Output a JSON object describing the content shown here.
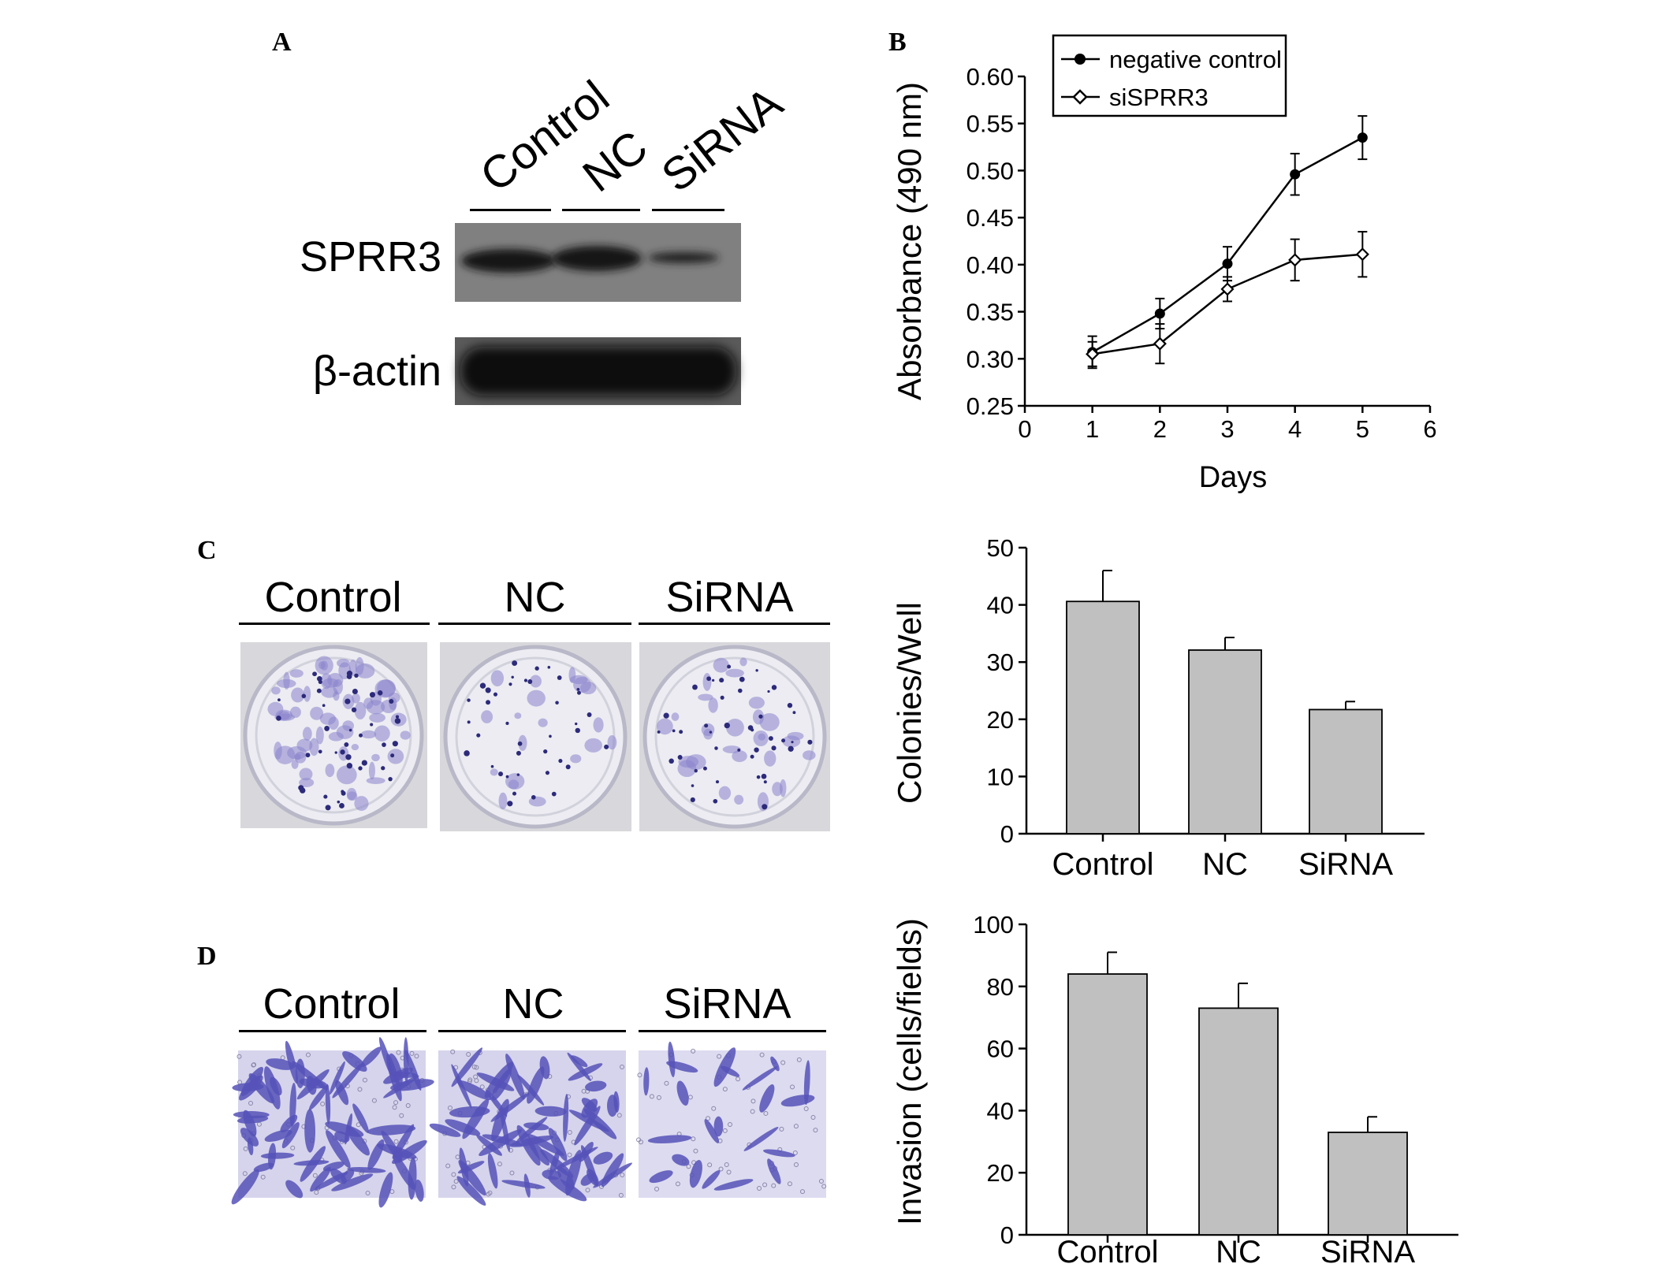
{
  "panels": {
    "a": "A",
    "b": "B",
    "c": "C",
    "d": "D"
  },
  "blot": {
    "lanes": [
      "Control",
      "NC",
      "SiRNA"
    ],
    "rows": [
      "SPRR3",
      "β-actin"
    ]
  },
  "colony": {
    "groups": [
      "Control",
      "NC",
      "SiRNA"
    ]
  },
  "invasion": {
    "groups": [
      "Control",
      "NC",
      "SiRNA"
    ]
  },
  "colors": {
    "bar": "#c0c0c0",
    "blot_bg": "#7e7e7e",
    "stain": "#5a58b5",
    "plate": "#e4e4ec"
  },
  "chart_data": [
    {
      "type": "line",
      "xlabel": "Days",
      "ylabel": "Absorbance (490 nm)",
      "xlim": [
        0,
        6
      ],
      "ylim": [
        0.25,
        0.6
      ],
      "xticks": [
        "0",
        "1",
        "2",
        "3",
        "4",
        "5",
        "6"
      ],
      "yticks": [
        "0.60",
        "0.55",
        "0.50",
        "0.45",
        "0.40",
        "0.35",
        "0.30",
        "0.25"
      ],
      "legend": "top-left",
      "grid": false,
      "series": [
        {
          "name": "negative control",
          "marker": "filled-circle",
          "x": [
            1,
            2,
            3,
            4,
            5
          ],
          "y": [
            0.307,
            0.348,
            0.401,
            0.496,
            0.535
          ],
          "err": [
            0.017,
            0.016,
            0.018,
            0.022,
            0.023
          ]
        },
        {
          "name": "siSPRR3",
          "marker": "open-diamond",
          "x": [
            1,
            2,
            3,
            4,
            5
          ],
          "y": [
            0.305,
            0.316,
            0.374,
            0.405,
            0.411
          ],
          "err": [
            0.013,
            0.021,
            0.013,
            0.022,
            0.024
          ]
        }
      ]
    },
    {
      "type": "bar",
      "categories": [
        "Control",
        "NC",
        "SiRNA"
      ],
      "values": [
        40.6,
        32.1,
        21.7
      ],
      "errors": [
        5.4,
        2.2,
        1.4
      ],
      "ylabel": "Colonies/Well",
      "ylim": [
        0,
        50
      ],
      "yticks": [
        "50",
        "40",
        "30",
        "20",
        "10",
        "0"
      ]
    },
    {
      "type": "bar",
      "categories": [
        "Control",
        "NC",
        "SiRNA"
      ],
      "values": [
        84,
        73,
        33
      ],
      "errors": [
        7,
        8,
        5
      ],
      "ylabel": "Invasion (cells/fields)",
      "ylim": [
        0,
        100
      ],
      "yticks": [
        "100",
        "80",
        "60",
        "40",
        "20",
        "0"
      ]
    }
  ]
}
